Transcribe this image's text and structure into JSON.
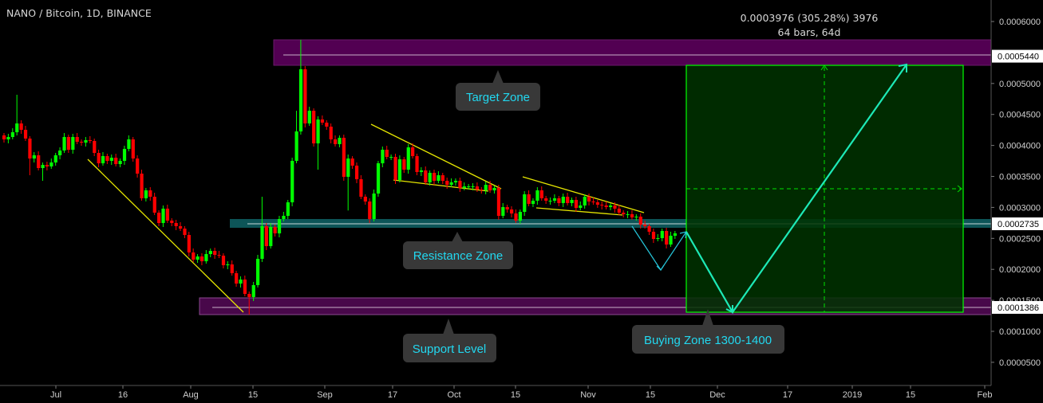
{
  "header": {
    "title": "NANO / Bitcoin, 1D, BINANCE"
  },
  "chart_data": {
    "type": "candlestick",
    "title": "NANO / Bitcoin, 1D, BINANCE",
    "interval": "1D",
    "exchange": "BINANCE",
    "ylim": [
      0.0,
      0.0006
    ],
    "grid": false,
    "y_ticks": [
      "0.0006000",
      "0.0005000",
      "0.0004500",
      "0.0004000",
      "0.0003500",
      "0.0003000",
      "0.0002500",
      "0.0002000",
      "0.0001500",
      "0.0001000",
      "0.0000500"
    ],
    "y_tick_values": [
      0.0006,
      0.0005,
      0.00045,
      0.0004,
      0.00035,
      0.0003,
      0.00025,
      0.0002,
      0.00015,
      0.0001,
      5e-05
    ],
    "x_ticks": [
      "Jul",
      "16",
      "Aug",
      "15",
      "Sep",
      "17",
      "Oct",
      "15",
      "Nov",
      "15",
      "Dec",
      "17",
      "2019",
      "15",
      "Feb"
    ],
    "colors": {
      "up": "#00ff00",
      "down": "#ff0000",
      "background": "#000000",
      "callout_text": "#22d8f0",
      "callout_bg": "#383838",
      "zone_purple": "#520052",
      "zone_teal": "#0d5558",
      "target_box": "#003300",
      "arrow": "#1de9b6",
      "trendline": "#e6e600"
    },
    "first_open": 0.0004162,
    "close": [
      0.0004098,
      0.0004136,
      0.0004213,
      0.0004355,
      0.0004252,
      0.0004111,
      0.0003789,
      0.0003841,
      0.0003635,
      0.0003686,
      0.0003661,
      0.0003725,
      0.0003841,
      0.0003918,
      0.0004136,
      0.0003931,
      0.0004136,
      0.0004059,
      0.0004046,
      0.0004085,
      0.0004072,
      0.0003879,
      0.0003712,
      0.0003828,
      0.0003751,
      0.0003802,
      0.0003699,
      0.0003751,
      0.0003944,
      0.0004098,
      0.0003789,
      0.0003545,
      0.0003147,
      0.0003275,
      0.0003172,
      0.0002915,
      0.0002748,
      0.000298,
      0.0002787,
      0.0002748,
      0.0002697,
      0.0002658,
      0.0002555,
      0.0002273,
      0.0002157,
      0.0002208,
      0.0002131,
      0.0002247,
      0.0002298,
      0.0002234,
      0.0002221,
      0.0002067,
      0.000208,
      0.0001938,
      0.0001771,
      0.0001836,
      0.0001604,
      0.0001553,
      0.0001746,
      0.000217,
      0.0002697,
      0.0002375,
      0.0002684,
      0.0002581,
      0.0002812,
      0.0002864,
      0.0003082,
      0.0003751,
      0.0004226,
      0.0005229,
      0.0004355,
      0.000456,
      0.0004033,
      0.0004419,
      0.0004368,
      0.0004303,
      0.0004098,
      0.0004021,
      0.0004123,
      0.0003494,
      0.0003789,
      0.0003674,
      0.0003455,
      0.0003172,
      0.0003095,
      0.0002812,
      0.0003224,
      0.0003712,
      0.0003931,
      0.0003815,
      0.0003815,
      0.0003442,
      0.0003776,
      0.0003609,
      0.0003969,
      0.0003828,
      0.0003571,
      0.0003597,
      0.0003404,
      0.0003558,
      0.0003429,
      0.0003519,
      0.0003429,
      0.0003365,
      0.0003404,
      0.0003429,
      0.0003314,
      0.0003339,
      0.0003339,
      0.0003339,
      0.0003288,
      0.0003275,
      0.0003365,
      0.0003275,
      0.0003314,
      0.0002864,
      0.0003005,
      0.0002967,
      0.0002902,
      0.0002787,
      0.0002928,
      0.0003211,
      0.0003057,
      0.0003108,
      0.0003275,
      0.0003147,
      0.0003108,
      0.0003108,
      0.0003147,
      0.000307,
      0.0003172,
      0.000307,
      0.0003121,
      0.0002992,
      0.0003031,
      0.0003172,
      0.0003095,
      0.0003082,
      0.0003044,
      0.0003031,
      0.0003005,
      0.0003031,
      0.000298,
      0.0002915,
      0.000289,
      0.000289,
      0.0002838,
      0.0002851,
      0.0002722,
      0.0002697,
      0.0002607,
      0.0002491,
      0.0002504,
      0.000262,
      0.0002401,
      0.0002543,
      0.0002581
    ],
    "highs": {
      "3": 0.0004818,
      "60": 0.0003172,
      "69": 0.0005704,
      "68": 0.000456
    },
    "lows": {
      "6": 0.0003519,
      "9": 0.0003429,
      "57": 0.000127,
      "73": 0.0003609,
      "80": 0.000295
    },
    "price_labels": [
      {
        "value": 0.000544,
        "text": "0.0005440"
      },
      {
        "value": 0.0002735,
        "text": "0.0002735"
      },
      {
        "value": 0.0001386,
        "text": "0.0001386"
      }
    ],
    "zones": {
      "target": {
        "from": 0.000565,
        "to": 0.000523
      },
      "resistance": {
        "from": 0.000279,
        "to": 0.000266
      },
      "support": {
        "from": 0.000152,
        "to": 0.000125
      }
    },
    "measure": {
      "line1": "0.0003976 (305.28%) 3976",
      "line2": "64 bars, 64d",
      "from": 0.000137,
      "to": 0.000533
    },
    "annotations": [
      {
        "text": "Target Zone"
      },
      {
        "text": "Resistance Zone"
      },
      {
        "text": "Support Level"
      },
      {
        "text": "Buying Zone 1300-1400"
      }
    ]
  }
}
